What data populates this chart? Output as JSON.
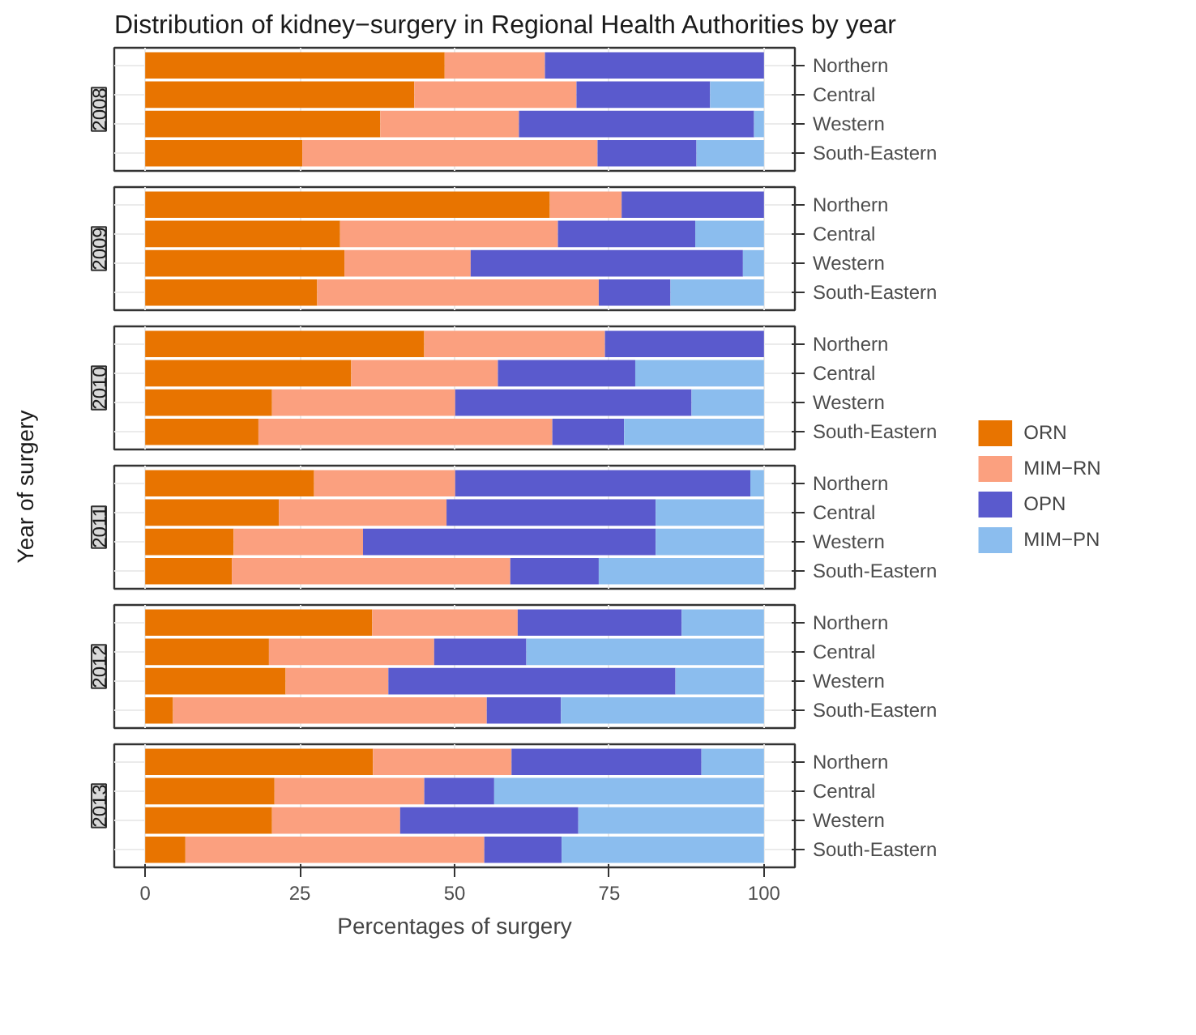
{
  "chart_data": [
    {
      "type": "bar",
      "orientation": "horizontal",
      "stacked": true,
      "title": "Distribution of kidney−surgery in Regional Health Authorities by year",
      "ylabel": "2008",
      "categories": [
        "Northern",
        "Central",
        "Western",
        "South-Eastern"
      ],
      "xlim": [
        -5,
        105
      ],
      "xticks": [
        0,
        25,
        50,
        75,
        100
      ],
      "grid": true,
      "tick_labels": "y",
      "series": [
        {
          "color": "#e87400",
          "values": [
            48.4,
            43.5,
            38.0,
            25.4
          ]
        },
        {
          "color": "#fba07f",
          "values": [
            16.2,
            26.2,
            22.4,
            47.7
          ]
        },
        {
          "color": "#5a5acd",
          "values": [
            35.4,
            21.6,
            38.0,
            16.0
          ]
        },
        {
          "color": "#8bbdee",
          "values": [
            0,
            8.7,
            1.6,
            10.9
          ]
        }
      ]
    },
    {
      "type": "bar",
      "orientation": "horizontal",
      "stacked": true,
      "ylabel": "2009",
      "categories": [
        "Northern",
        "Central",
        "Western",
        "South-Eastern"
      ],
      "xlim": [
        -5,
        105
      ],
      "xticks": [
        0,
        25,
        50,
        75,
        100
      ],
      "grid": true,
      "tick_labels": "y",
      "series": [
        {
          "color": "#e87400",
          "values": [
            65.4,
            31.5,
            32.2,
            27.8
          ]
        },
        {
          "color": "#fba07f",
          "values": [
            11.6,
            35.2,
            20.4,
            45.5
          ]
        },
        {
          "color": "#5a5acd",
          "values": [
            23.0,
            22.2,
            44.0,
            11.6
          ]
        },
        {
          "color": "#8bbdee",
          "values": [
            0,
            11.1,
            3.4,
            15.1
          ]
        }
      ]
    },
    {
      "type": "bar",
      "orientation": "horizontal",
      "stacked": true,
      "ylabel": "2010",
      "categories": [
        "Northern",
        "Central",
        "Western",
        "South-Eastern"
      ],
      "xlim": [
        -5,
        105
      ],
      "xticks": [
        0,
        25,
        50,
        75,
        100
      ],
      "grid": true,
      "tick_labels": "y",
      "series": [
        {
          "color": "#e87400",
          "values": [
            45.1,
            33.3,
            20.5,
            18.3
          ]
        },
        {
          "color": "#fba07f",
          "values": [
            29.2,
            23.7,
            29.6,
            47.5
          ]
        },
        {
          "color": "#5a5acd",
          "values": [
            25.7,
            22.2,
            38.2,
            11.6
          ]
        },
        {
          "color": "#8bbdee",
          "values": [
            0,
            20.8,
            11.7,
            22.6
          ]
        }
      ]
    },
    {
      "type": "bar",
      "orientation": "horizontal",
      "stacked": true,
      "ylabel": "2011",
      "categories": [
        "Northern",
        "Central",
        "Western",
        "South-Eastern"
      ],
      "xlim": [
        -5,
        105
      ],
      "xticks": [
        0,
        25,
        50,
        75,
        100
      ],
      "grid": true,
      "tick_labels": "y",
      "legend": "right",
      "annotations": [
        "Year of surgery"
      ],
      "series": [
        {
          "name": "ORN",
          "color": "#e87400",
          "values": [
            27.3,
            21.6,
            14.3,
            14.0
          ]
        },
        {
          "name": "MIM−RN",
          "color": "#fba07f",
          "values": [
            22.8,
            27.1,
            20.9,
            45.0
          ]
        },
        {
          "name": "OPN",
          "color": "#5a5acd",
          "values": [
            47.7,
            33.8,
            47.3,
            14.3
          ]
        },
        {
          "name": "MIM−PN",
          "color": "#8bbdee",
          "values": [
            2.2,
            17.5,
            17.5,
            26.7
          ]
        }
      ]
    },
    {
      "type": "bar",
      "orientation": "horizontal",
      "stacked": true,
      "ylabel": "2012",
      "categories": [
        "Northern",
        "Central",
        "Western",
        "South-Eastern"
      ],
      "xlim": [
        -5,
        105
      ],
      "xticks": [
        0,
        25,
        50,
        75,
        100
      ],
      "grid": true,
      "tick_labels": "y",
      "series": [
        {
          "color": "#e87400",
          "values": [
            36.7,
            20.0,
            22.7,
            4.5
          ]
        },
        {
          "color": "#fba07f",
          "values": [
            23.5,
            26.7,
            16.6,
            50.7
          ]
        },
        {
          "color": "#5a5acd",
          "values": [
            26.5,
            14.9,
            46.4,
            12.0
          ]
        },
        {
          "color": "#8bbdee",
          "values": [
            13.3,
            38.4,
            14.3,
            32.8
          ]
        }
      ]
    },
    {
      "type": "bar",
      "orientation": "horizontal",
      "stacked": true,
      "ylabel": "2013",
      "xlabel": "Percentages of surgery",
      "categories": [
        "Northern",
        "Central",
        "Western",
        "South-Eastern"
      ],
      "xlim": [
        -5,
        105
      ],
      "xticks": [
        0,
        25,
        50,
        75,
        100
      ],
      "grid": true,
      "series": [
        {
          "color": "#e87400",
          "values": [
            36.8,
            20.9,
            20.5,
            6.5
          ]
        },
        {
          "color": "#fba07f",
          "values": [
            22.4,
            24.2,
            20.7,
            48.3
          ]
        },
        {
          "color": "#5a5acd",
          "values": [
            30.7,
            11.3,
            28.8,
            12.5
          ]
        },
        {
          "color": "#8bbdee",
          "values": [
            10.1,
            43.6,
            30.0,
            32.7
          ]
        }
      ]
    }
  ]
}
